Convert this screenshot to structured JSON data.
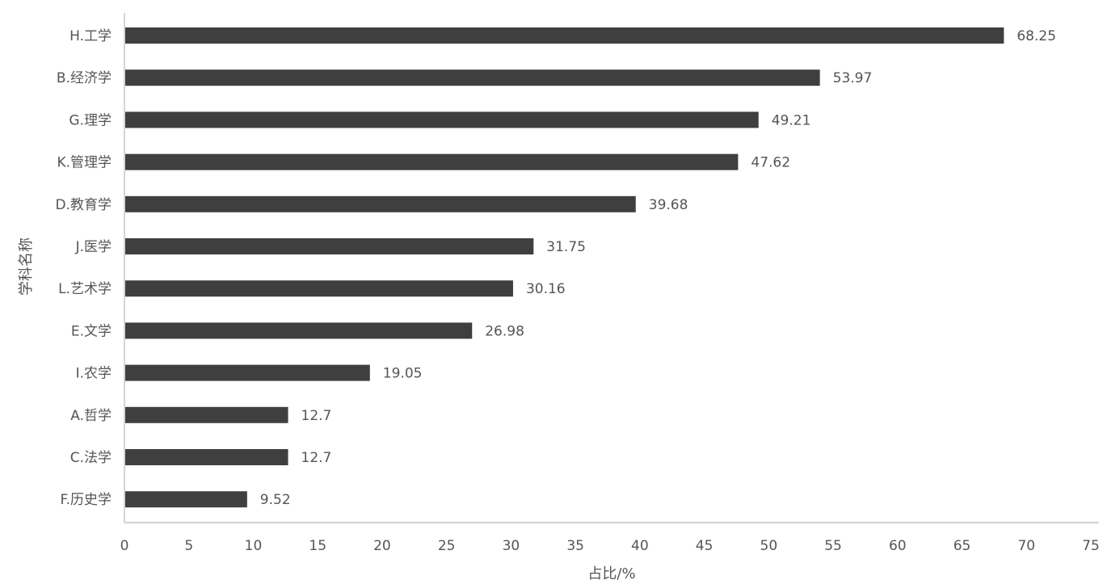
{
  "chart_data": {
    "type": "bar",
    "orientation": "horizontal",
    "title": "",
    "xlabel": "占比/%",
    "ylabel": "学科名称",
    "xlim": [
      0,
      75
    ],
    "xticks": [
      0,
      5,
      10,
      15,
      20,
      25,
      30,
      35,
      40,
      45,
      50,
      55,
      60,
      65,
      70,
      75
    ],
    "grid": false,
    "legend": "none",
    "bar_color": "#3f3f3f",
    "categories": [
      "H.工学",
      "B.经济学",
      "G.理学",
      "K.管理学",
      "D.教育学",
      "J.医学",
      "L.艺术学",
      "E.文学",
      "I.农学",
      "A.哲学",
      "C.法学",
      "F.历史学"
    ],
    "values": [
      68.25,
      53.97,
      49.21,
      47.62,
      39.68,
      31.75,
      30.16,
      26.98,
      19.05,
      12.7,
      12.7,
      9.52
    ],
    "data_labels": [
      "68.25",
      "53.97",
      "49.21",
      "47.62",
      "39.68",
      "31.75",
      "30.16",
      "26.98",
      "19.05",
      "12.7",
      "12.7",
      "9.52"
    ]
  }
}
